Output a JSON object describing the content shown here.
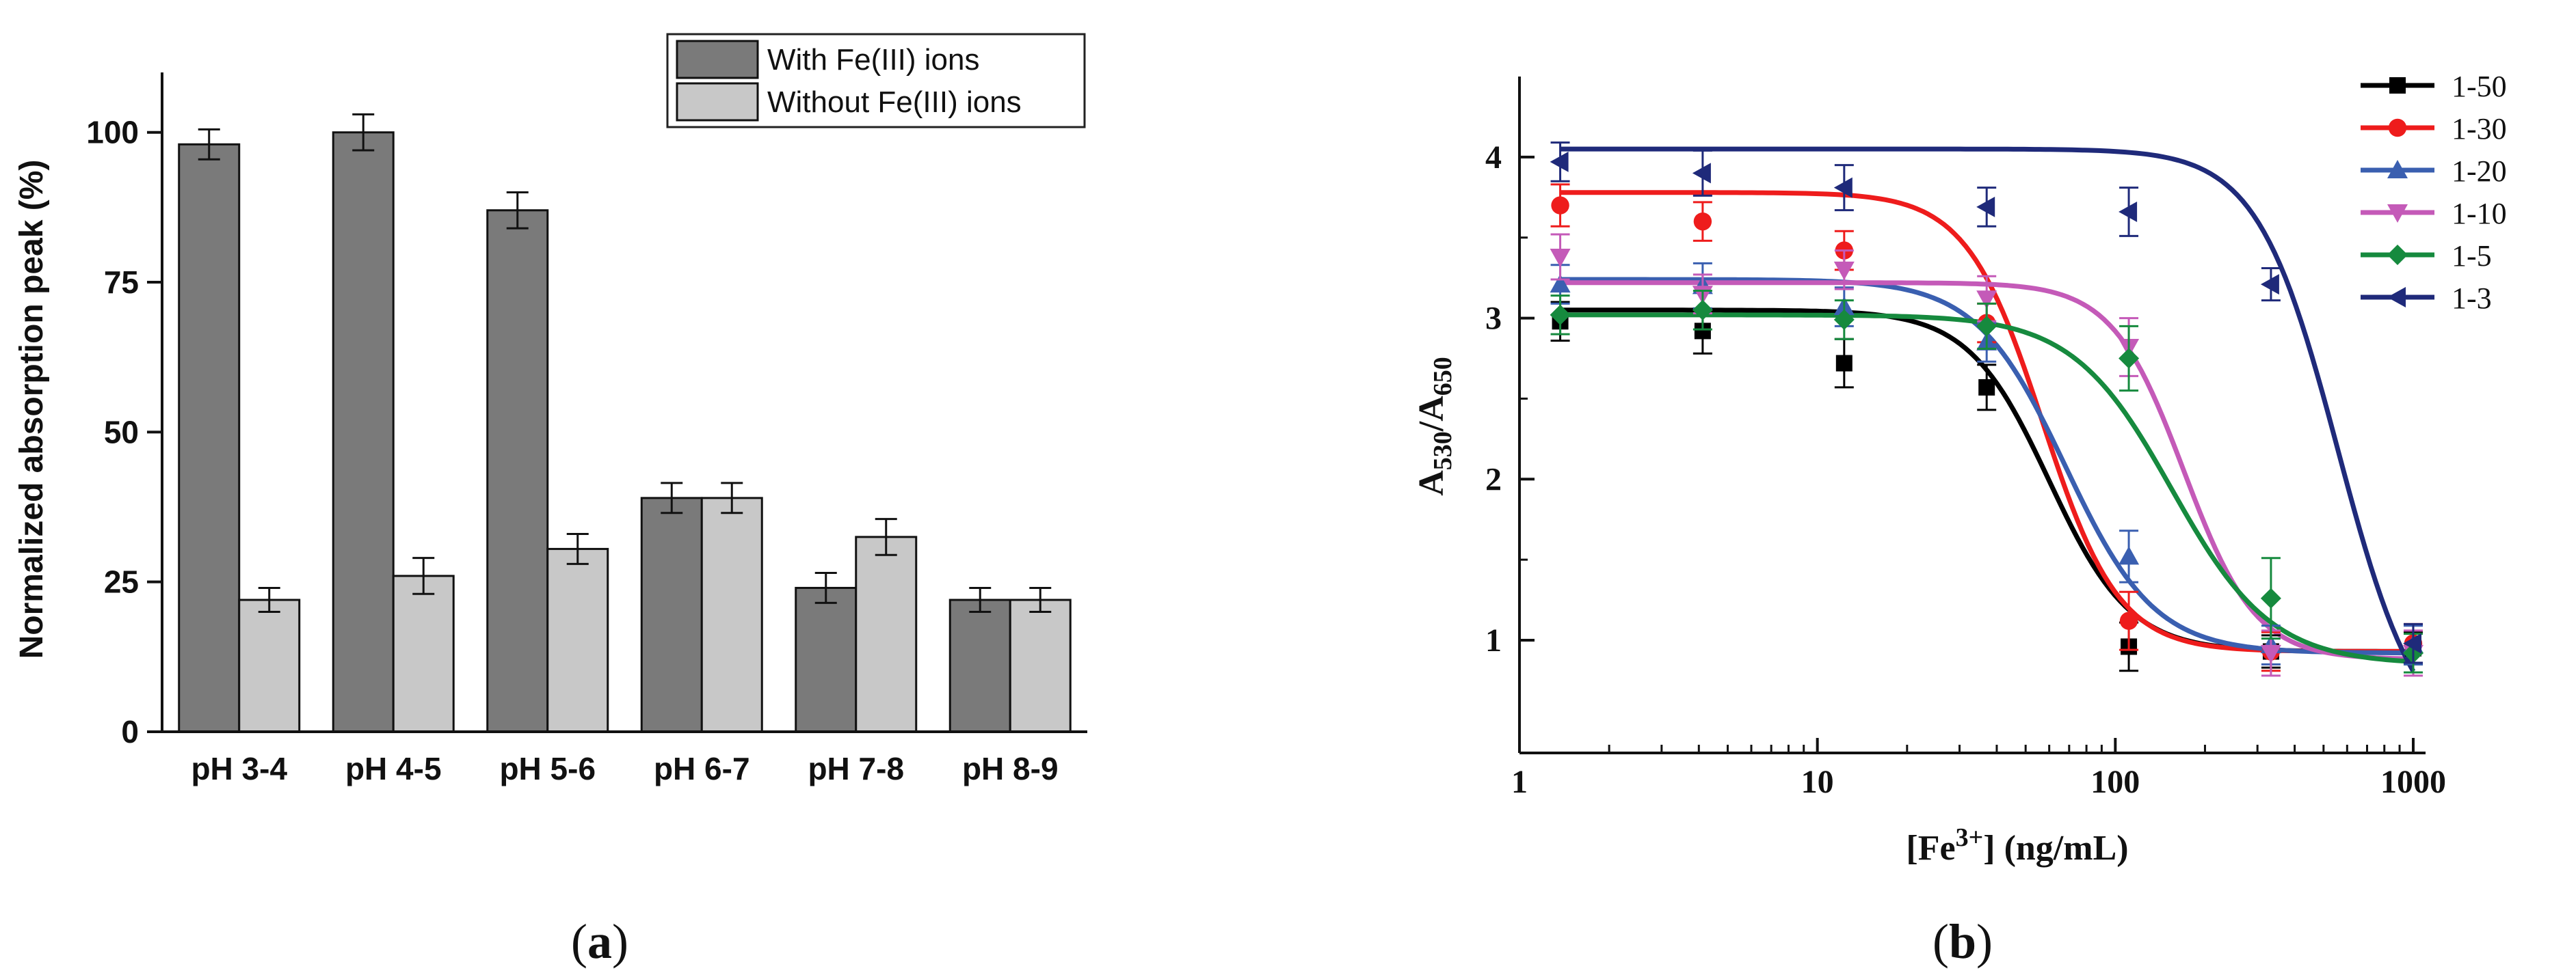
{
  "panels": {
    "a": {
      "caption_prefix": "(",
      "caption_letter": "a",
      "caption_suffix": ")"
    },
    "b": {
      "caption_prefix": "(",
      "caption_letter": "b",
      "caption_suffix": ")"
    }
  },
  "chart_data": [
    {
      "id": "a",
      "type": "bar",
      "title": "",
      "xlabel": "",
      "ylabel": "Normalized absorption peak (%)",
      "ylim": [
        0,
        110
      ],
      "yticks": [
        "0",
        "25",
        "50",
        "75",
        "100"
      ],
      "grid": false,
      "legend_position": "top-right",
      "categories": [
        "pH 3-4",
        "pH 4-5",
        "pH 5-6",
        "pH 6-7",
        "pH 7-8",
        "pH 8-9"
      ],
      "series": [
        {
          "name": "With Fe(III) ions",
          "color": "#7a7a7a",
          "values": [
            98,
            100,
            87,
            39,
            24,
            22
          ],
          "errors": [
            2.5,
            3,
            3,
            2.5,
            2.5,
            2
          ]
        },
        {
          "name": "Without Fe(III) ions",
          "color": "#c8c8c8",
          "values": [
            22,
            26,
            30.5,
            39,
            32.5,
            22
          ],
          "errors": [
            2,
            3,
            2.5,
            2.5,
            3,
            2
          ]
        }
      ]
    },
    {
      "id": "b",
      "type": "scatter",
      "title": "",
      "xlabel_base": "[Fe",
      "xlabel_sup": "3+",
      "xlabel_rest": "] (ng/mL)",
      "ylabel_a": "A",
      "ylabel_sub1": "530",
      "ylabel_sep": "/A",
      "ylabel_sub2": "650",
      "xscale": "log",
      "xlim": [
        1,
        1100
      ],
      "ylim": [
        0.3,
        4.5
      ],
      "xticks": [
        "1",
        "10",
        "100",
        "1000"
      ],
      "yticks": [
        "1",
        "2",
        "3",
        "4"
      ],
      "grid": false,
      "legend_position": "top-right",
      "x": [
        1.37,
        4.12,
        12.3,
        37,
        111,
        333,
        1000
      ],
      "series": [
        {
          "name": "1-50",
          "color": "#000000",
          "marker": "square",
          "values": [
            2.98,
            2.92,
            2.72,
            2.57,
            0.96,
            0.93,
            0.95
          ],
          "errors": [
            0.12,
            0.14,
            0.15,
            0.14,
            0.15,
            0.1,
            0.1
          ],
          "fit": [
            0.93,
            3.05,
            60,
            3.2
          ]
        },
        {
          "name": "1-30",
          "color": "#ee1c1c",
          "marker": "circle",
          "values": [
            3.7,
            3.6,
            3.42,
            2.97,
            1.12,
            0.93,
            0.98
          ],
          "errors": [
            0.13,
            0.12,
            0.12,
            0.12,
            0.18,
            0.12,
            0.12
          ],
          "fit": [
            0.93,
            3.78,
            57,
            3.4
          ]
        },
        {
          "name": "1-20",
          "color": "#3a5fb0",
          "marker": "triangle-up",
          "values": [
            3.21,
            3.2,
            3.07,
            2.85,
            1.52,
            0.97,
            0.97
          ],
          "errors": [
            0.12,
            0.14,
            0.12,
            0.12,
            0.16,
            0.12,
            0.12
          ],
          "fit": [
            0.92,
            3.24,
            68,
            2.9
          ]
        },
        {
          "name": "1-10",
          "color": "#c45ab8",
          "marker": "triangle-down",
          "values": [
            3.38,
            3.15,
            3.3,
            3.12,
            2.82,
            0.92,
            0.92
          ],
          "errors": [
            0.14,
            0.12,
            0.12,
            0.14,
            0.18,
            0.14,
            0.14
          ],
          "fit": [
            0.88,
            3.22,
            170,
            3.6
          ]
        },
        {
          "name": "1-5",
          "color": "#168a3e",
          "marker": "diamond",
          "values": [
            3.02,
            3.05,
            2.99,
            2.95,
            2.75,
            1.26,
            0.92
          ],
          "errors": [
            0.12,
            0.12,
            0.12,
            0.14,
            0.2,
            0.25,
            0.12
          ],
          "fit": [
            0.85,
            3.02,
            155,
            2.6
          ]
        },
        {
          "name": "1-3",
          "color": "#1f2a7a",
          "marker": "triangle-left",
          "values": [
            3.97,
            3.9,
            3.81,
            3.69,
            3.66,
            3.21,
            0.98
          ],
          "errors": [
            0.12,
            0.14,
            0.14,
            0.12,
            0.15,
            0.1,
            0.12
          ],
          "fit": [
            0.3,
            4.05,
            560,
            3.2
          ]
        }
      ]
    }
  ]
}
